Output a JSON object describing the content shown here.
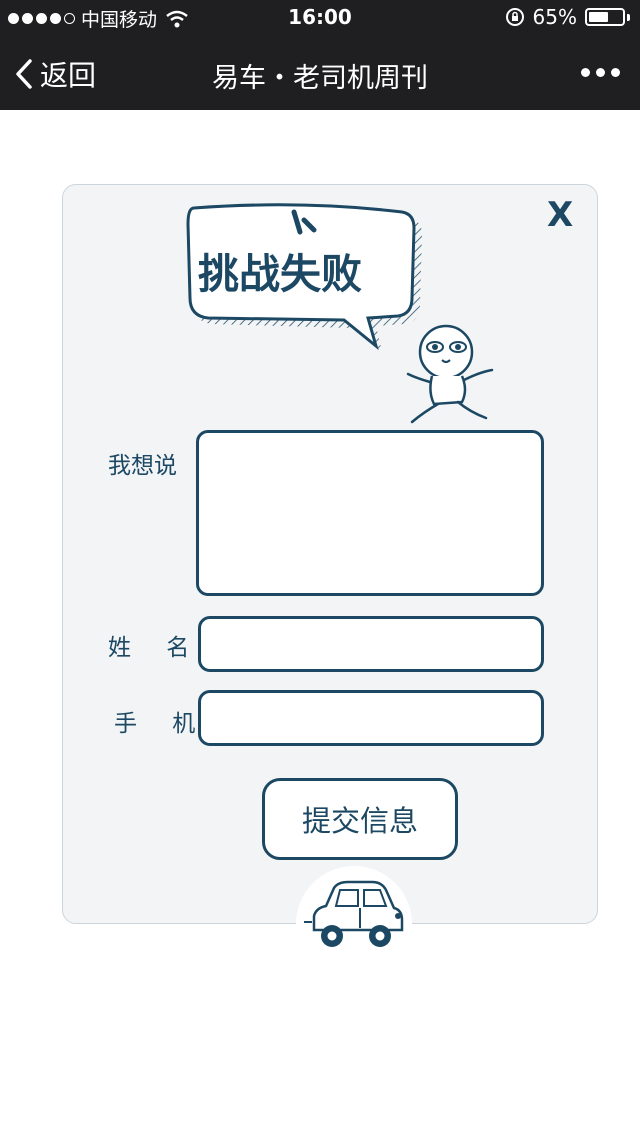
{
  "status_bar": {
    "carrier": "中国移动",
    "time": "16:00",
    "battery": "65%",
    "battery_level": 0.65
  },
  "nav": {
    "back_label": "返回",
    "title": "易车・老司机周刊"
  },
  "dialog": {
    "close_label": "X",
    "heading": "挑战失败",
    "message_label": "我想说",
    "name_label": "姓 名",
    "phone_label": "手 机",
    "submit_label": "提交信息"
  }
}
